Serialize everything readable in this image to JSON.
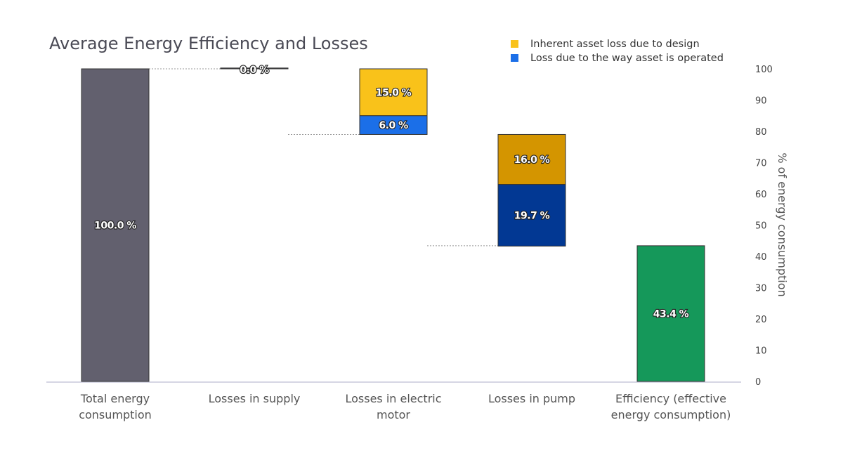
{
  "chart_data": {
    "type": "bar",
    "subtype": "waterfall",
    "title": "Average Energy Efficiency and Losses",
    "xlabel": "",
    "ylabel": "% of energy consumption",
    "ylim": [
      0,
      100
    ],
    "yticks": [
      0,
      10,
      20,
      30,
      40,
      50,
      60,
      70,
      80,
      90,
      100
    ],
    "y_axis_side": "right",
    "grid": false,
    "legend_position": "top-right",
    "legend": [
      {
        "label": "Inherent asset loss due to design",
        "color": "#f9c21a"
      },
      {
        "label": "Loss due to the way asset is operated",
        "color": "#1b6fe8"
      }
    ],
    "categories": [
      [
        "Total energy",
        "consumption"
      ],
      [
        "Losses in supply"
      ],
      [
        "Losses in electric",
        "motor"
      ],
      [
        "Losses in pump"
      ],
      [
        "Efficiency (effective",
        "energy consumption)"
      ]
    ],
    "segments": [
      {
        "category": 0,
        "bottom": 0,
        "value": 100.0,
        "label": "100.0 %",
        "color": "#62606e"
      },
      {
        "category": 1,
        "bottom": 100.0,
        "value": 0.0,
        "label": "0.0 %",
        "color": "#62606e"
      },
      {
        "category": 2,
        "bottom": 85.0,
        "value": 15.0,
        "label": "15.0 %",
        "color": "#f9c21a"
      },
      {
        "category": 2,
        "bottom": 79.0,
        "value": 6.0,
        "label": "6.0 %",
        "color": "#1b6fe8"
      },
      {
        "category": 3,
        "bottom": 63.0,
        "value": 16.0,
        "label": "16.0 %",
        "color": "#d49500"
      },
      {
        "category": 3,
        "bottom": 43.3,
        "value": 19.7,
        "label": "19.7 %",
        "color": "#023893"
      },
      {
        "category": 4,
        "bottom": 0,
        "value": 43.4,
        "label": "43.4 %",
        "color": "#15985a"
      }
    ],
    "connectors": [
      100.0,
      79.0,
      43.4
    ]
  }
}
